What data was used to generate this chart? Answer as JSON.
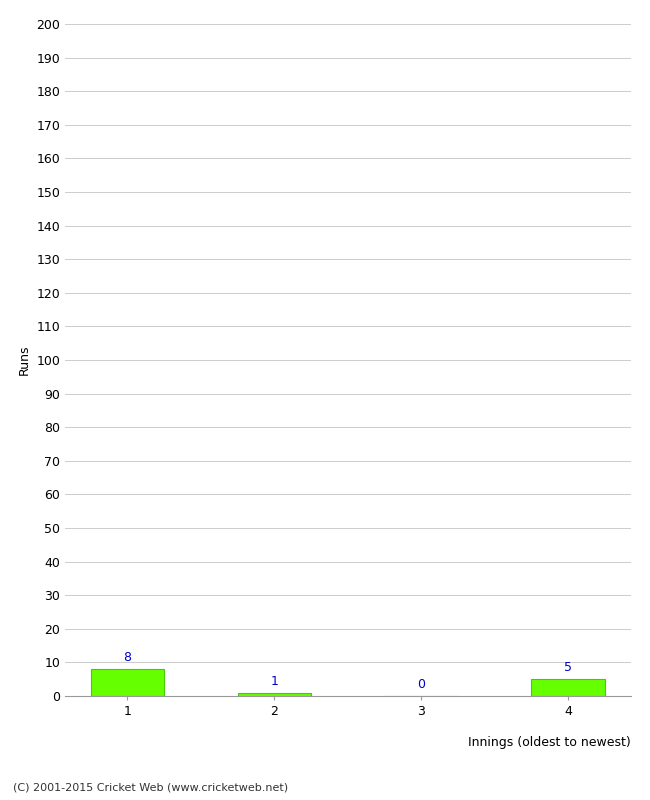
{
  "categories": [
    "1",
    "2",
    "3",
    "4"
  ],
  "values": [
    8,
    1,
    0,
    5
  ],
  "bar_color": "#66ff00",
  "bar_edge_color": "#44cc00",
  "label_color": "#0000cc",
  "ylabel": "Runs",
  "xlabel": "Innings (oldest to newest)",
  "ylim": [
    0,
    200
  ],
  "yticks": [
    0,
    10,
    20,
    30,
    40,
    50,
    60,
    70,
    80,
    90,
    100,
    110,
    120,
    130,
    140,
    150,
    160,
    170,
    180,
    190,
    200
  ],
  "footer": "(C) 2001-2015 Cricket Web (www.cricketweb.net)",
  "background_color": "#ffffff",
  "grid_color": "#cccccc",
  "tick_color": "#999999",
  "spine_color": "#999999"
}
